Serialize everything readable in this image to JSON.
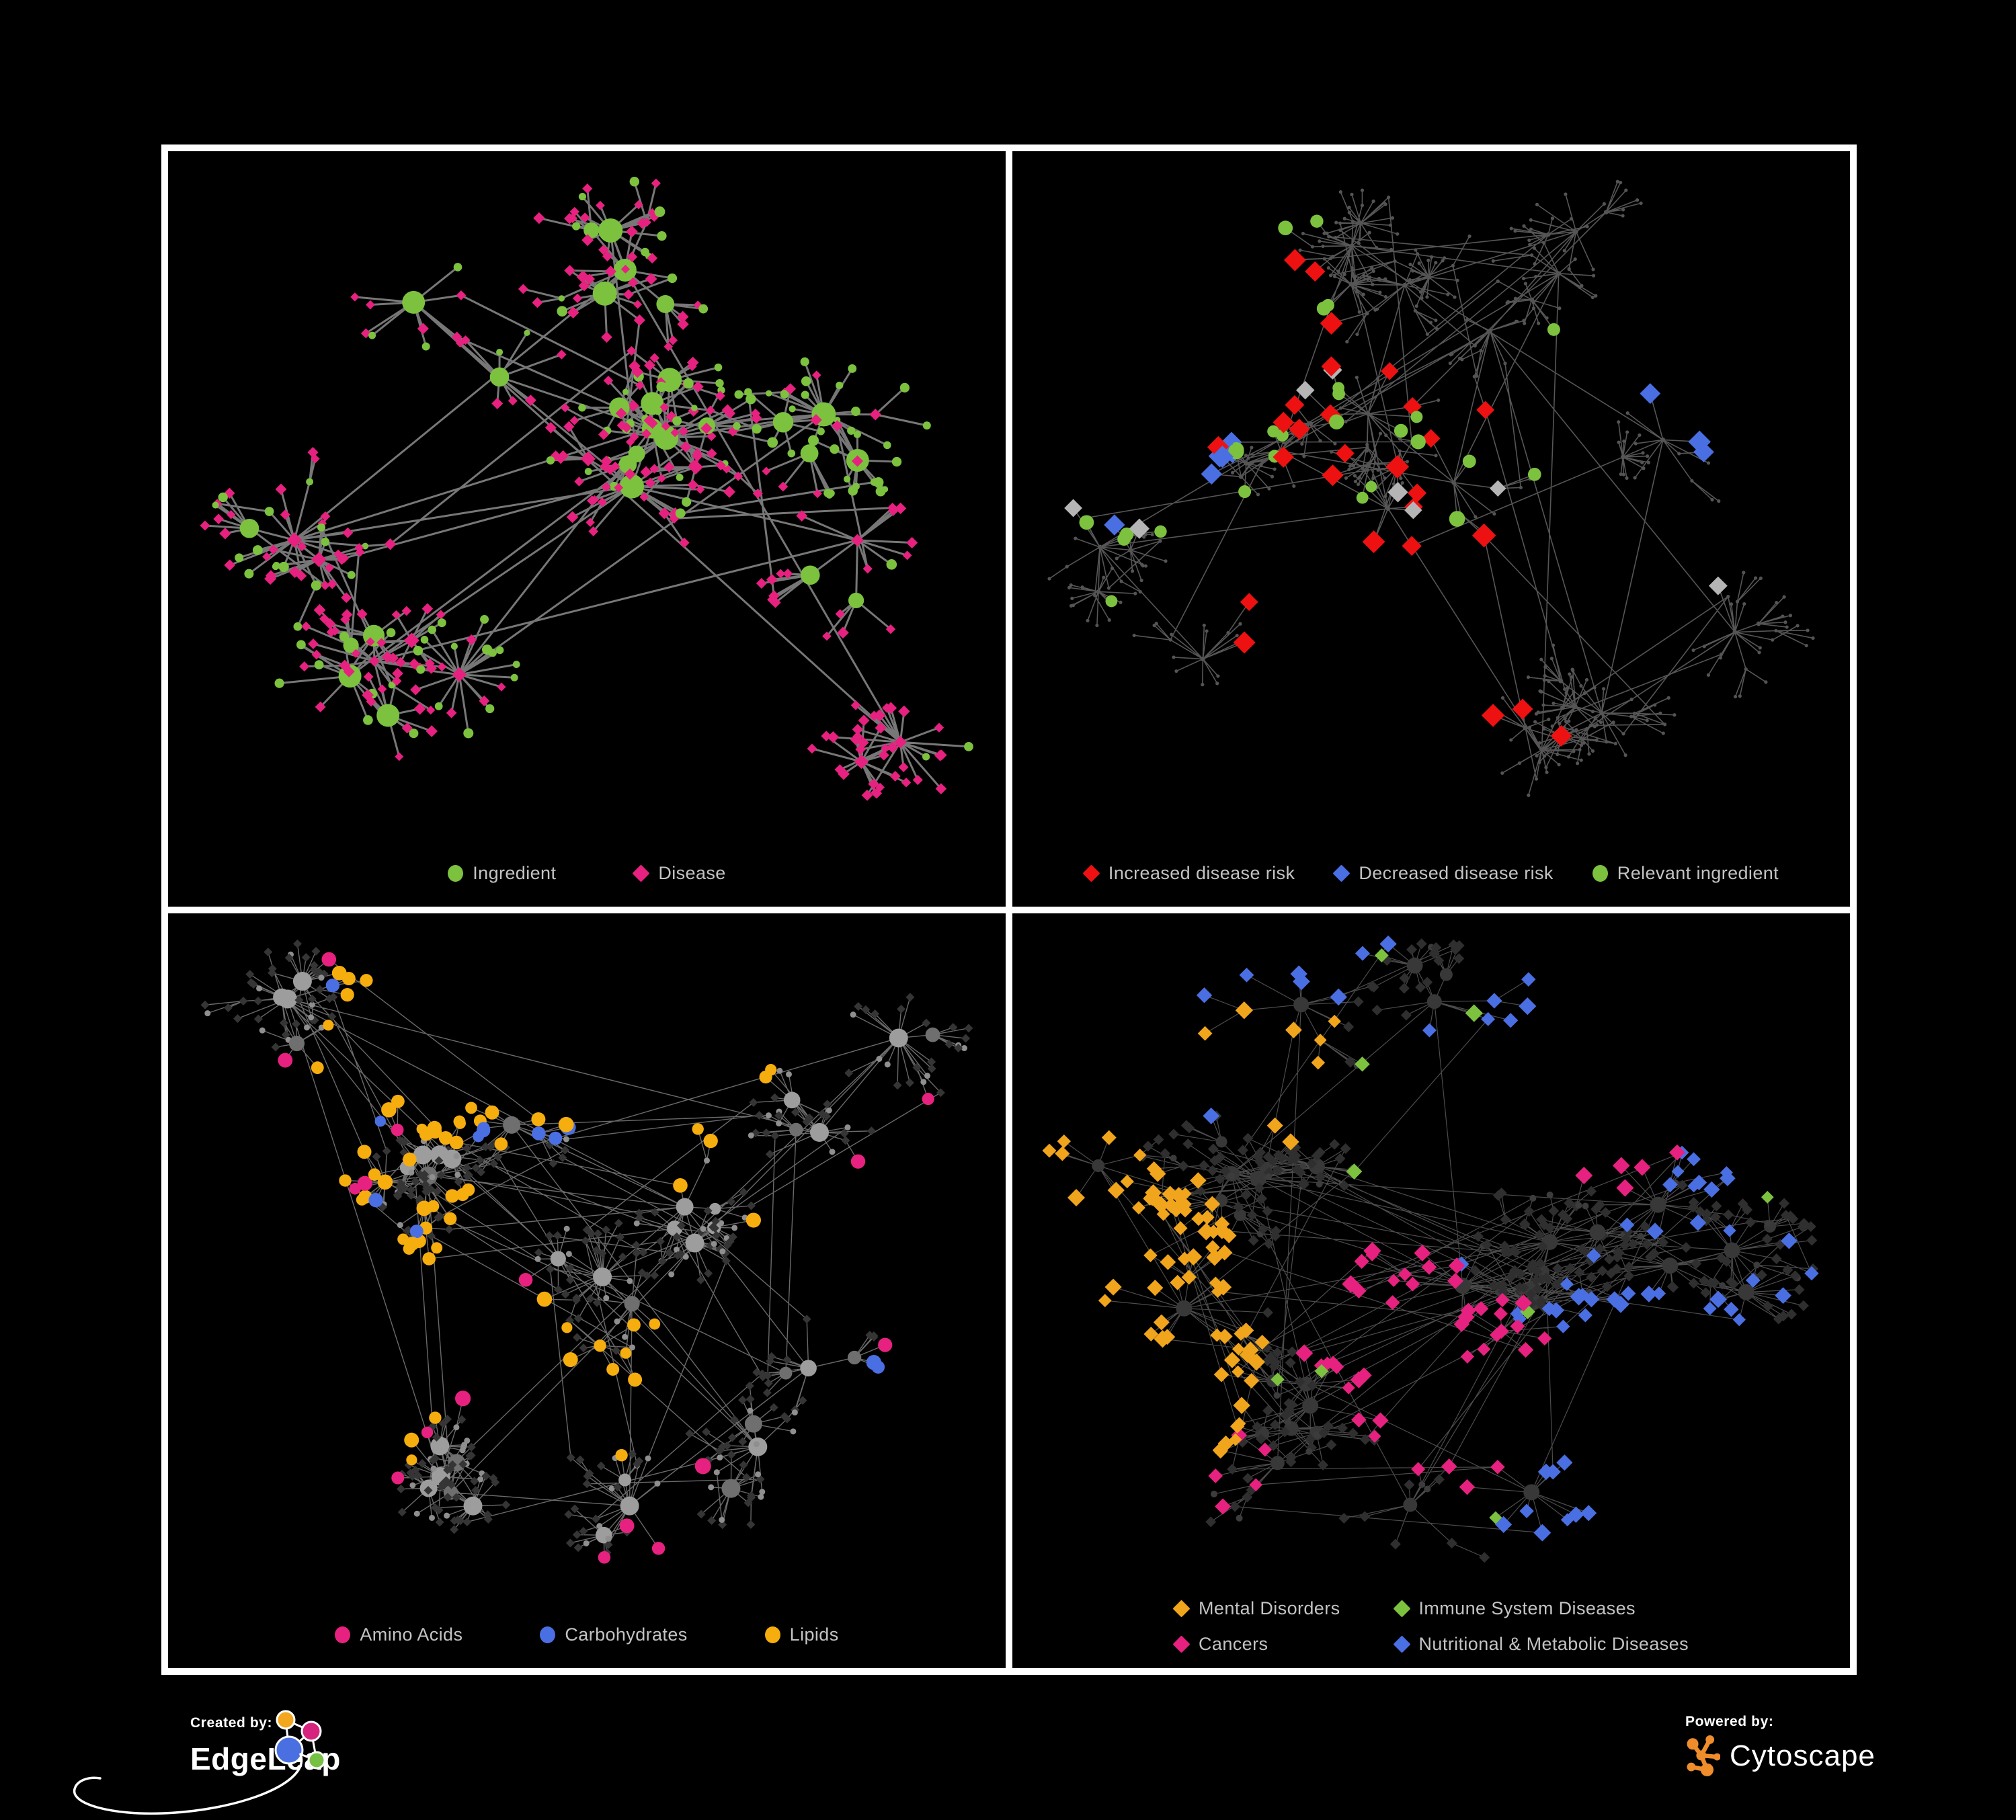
{
  "branding": {
    "created_by_label": "Created by:",
    "created_by_name": "EdgeLeap",
    "powered_by_label": "Powered by:",
    "powered_by_name": "Cytoscape"
  },
  "colors": {
    "background": "#000000",
    "frame": "#ffffff",
    "legend_text": "#c3c3c3",
    "green": "#7cc23f",
    "pink": "#e7217f",
    "red": "#ee1111",
    "blue": "#4a6fe3",
    "orange": "#f0a51c",
    "orange_lipids": "#f6ad0e",
    "gray_highlight": "#b5b5b5"
  },
  "panels": [
    {
      "name": "ingredient-disease",
      "legend": [
        {
          "label": "Ingredient",
          "shape": "circle",
          "color": "#7cc23f"
        },
        {
          "label": "Disease",
          "shape": "diamond",
          "color": "#e7217f"
        }
      ],
      "gen": {
        "seed": 11,
        "hubs": 13,
        "coreHubs": 5,
        "maxNodes": 430,
        "step": 42,
        "branchP": 0.5,
        "fanP": 0.3,
        "maxDepth": 7,
        "cross": 50,
        "crossDist": 420,
        "mode": "mix",
        "edge": [
          "#8c8c8c",
          3,
          0.85
        ],
        "hubKids": 4,
        "green": "#7cc23f",
        "pink": "#e7217f"
      }
    },
    {
      "name": "disease-risk",
      "legend": [
        {
          "label": "Increased disease risk",
          "shape": "diamond",
          "color": "#ee1111"
        },
        {
          "label": "Decreased disease risk",
          "shape": "diamond",
          "color": "#4a6fe3"
        },
        {
          "label": "Relevant ingredient",
          "shape": "circle",
          "color": "#7cc23f"
        }
      ],
      "gen": {
        "seed": 23,
        "hubs": 15,
        "coreHubs": 4,
        "maxNodes": 520,
        "step": 40,
        "branchP": 0.55,
        "fanP": 0.28,
        "maxDepth": 8,
        "cross": 70,
        "crossDist": 480,
        "mode": "dots",
        "edge": [
          "#5f5f5f",
          1.6,
          0.9
        ],
        "hubKids": 5,
        "base": "#545454",
        "highlights": [
          {
            "shape": "diamond",
            "color": "#ee1111",
            "size": 15,
            "count": 26,
            "foci": [
              [
                0.4,
                0.33,
                0.1,
                0.45
              ],
              [
                0.55,
                0.42,
                0.08,
                0.3
              ],
              [
                0.27,
                0.3,
                0.04,
                0.1
              ],
              [
                0.62,
                0.68,
                0.05,
                0.08
              ],
              [
                0.36,
                0.73,
                0.03,
                0.07
              ]
            ]
          },
          {
            "shape": "diamond",
            "color": "#4a6fe3",
            "size": 14,
            "count": 9,
            "foci": [
              [
                0.16,
                0.33,
                0.04,
                0.65
              ],
              [
                0.84,
                0.26,
                0.02,
                0.35
              ]
            ]
          },
          {
            "shape": "diamond",
            "color": "#b5b5b5",
            "size": 13,
            "count": 8,
            "foci": [
              [
                0.18,
                0.3,
                0.06,
                0.4
              ],
              [
                0.46,
                0.46,
                0.12,
                0.6
              ]
            ]
          },
          {
            "shape": "circle",
            "color": "#7cc23f",
            "size": 10,
            "count": 26,
            "foci": [
              [
                0.3,
                0.33,
                0.13,
                0.6
              ],
              [
                0.5,
                0.4,
                0.08,
                0.3
              ],
              [
                0.12,
                0.5,
                0.04,
                0.1
              ]
            ]
          }
        ]
      }
    },
    {
      "name": "nutrient-classes",
      "legend": [
        {
          "label": "Amino Acids",
          "shape": "circle",
          "color": "#e7217f"
        },
        {
          "label": "Carbohydrates",
          "shape": "circle",
          "color": "#4a6fe3"
        },
        {
          "label": "Lipids",
          "shape": "circle",
          "color": "#f6ad0e"
        }
      ],
      "gen": {
        "seed": 37,
        "hubs": 14,
        "coreHubs": 5,
        "maxNodes": 520,
        "step": 40,
        "branchP": 0.5,
        "fanP": 0.3,
        "maxDepth": 7,
        "cross": 120,
        "crossDist": 420,
        "mode": "gray",
        "edge": [
          "#979797",
          1.4,
          0.7
        ],
        "hubKids": 4,
        "highlights": [
          {
            "shape": "circle",
            "color": "#f6ad0e",
            "size": 9.5,
            "count": 62,
            "foci": [
              [
                0.34,
                0.18,
                0.06,
                0.35
              ],
              [
                0.3,
                0.4,
                0.06,
                0.3
              ],
              [
                0.53,
                0.6,
                0.04,
                0.15
              ],
              [
                0.6,
                0.28,
                0.1,
                0.1
              ],
              [
                0.15,
                0.55,
                0.08,
                0.1
              ]
            ]
          },
          {
            "shape": "circle",
            "color": "#4a6fe3",
            "size": 9.5,
            "count": 12,
            "foci": [
              [
                0.42,
                0.12,
                0.04,
                0.6
              ],
              [
                0.36,
                0.42,
                0.08,
                0.25
              ],
              [
                0.86,
                0.6,
                0.04,
                0.15
              ]
            ]
          },
          {
            "shape": "circle",
            "color": "#e7217f",
            "size": 10,
            "count": 15,
            "foci": [
              [
                0.13,
                0.5,
                0.12,
                0.3
              ],
              [
                0.5,
                0.76,
                0.12,
                0.3
              ],
              [
                0.88,
                0.42,
                0.08,
                0.2
              ],
              [
                0.3,
                0.2,
                0.1,
                0.2
              ]
            ]
          }
        ]
      }
    },
    {
      "name": "disease-classes",
      "legend": [
        {
          "label": "Mental Disorders",
          "shape": "diamond",
          "color": "#f0a51c"
        },
        {
          "label": "Immune System Diseases",
          "shape": "diamond",
          "color": "#7cc23f"
        },
        {
          "label": "Cancers",
          "shape": "diamond",
          "color": "#e7217f"
        },
        {
          "label": "Nutritional & Metabolic Diseases",
          "shape": "diamond",
          "color": "#4a6fe3"
        }
      ],
      "gen": {
        "seed": 49,
        "hubs": 15,
        "coreHubs": 5,
        "maxNodes": 540,
        "step": 40,
        "branchP": 0.5,
        "fanP": 0.3,
        "maxDepth": 7,
        "cross": 120,
        "crossDist": 420,
        "mode": "dark",
        "edge": [
          "#8a8a8a",
          1.2,
          0.55
        ],
        "hubKids": 5,
        "highlights": [
          {
            "shape": "diamond",
            "color": "#f0a51c",
            "size": 11,
            "count": 80,
            "foci": [
              [
                0.13,
                0.44,
                0.06,
                0.55
              ],
              [
                0.2,
                0.52,
                0.05,
                0.25
              ],
              [
                0.08,
                0.57,
                0.03,
                0.1
              ],
              [
                0.33,
                0.18,
                0.04,
                0.1
              ]
            ]
          },
          {
            "shape": "diamond",
            "color": "#e7217f",
            "size": 11,
            "count": 52,
            "foci": [
              [
                0.46,
                0.5,
                0.06,
                0.5
              ],
              [
                0.52,
                0.62,
                0.05,
                0.3
              ],
              [
                0.3,
                0.76,
                0.03,
                0.1
              ],
              [
                0.72,
                0.3,
                0.03,
                0.1
              ]
            ]
          },
          {
            "shape": "diamond",
            "color": "#4a6fe3",
            "size": 11,
            "count": 62,
            "foci": [
              [
                0.66,
                0.55,
                0.05,
                0.3
              ],
              [
                0.76,
                0.73,
                0.05,
                0.2
              ],
              [
                0.8,
                0.28,
                0.07,
                0.2
              ],
              [
                0.55,
                0.1,
                0.09,
                0.1
              ],
              [
                0.3,
                0.07,
                0.06,
                0.1
              ],
              [
                0.93,
                0.45,
                0.04,
                0.1
              ]
            ]
          },
          {
            "shape": "diamond",
            "color": "#7cc23f",
            "size": 11,
            "count": 9,
            "foci": [
              [
                0.5,
                0.45,
                0.18,
                1.0
              ]
            ]
          }
        ]
      }
    }
  ],
  "chart_data": [
    {
      "type": "network",
      "panel": "top-left",
      "description": "Ingredient-disease association network; green circles are ingredients (hub-sized by degree), pink diamonds are diseases",
      "legend": [
        "Ingredient",
        "Disease"
      ],
      "approx_nodes": 430,
      "legend_position": "bottom-center"
    },
    {
      "type": "network",
      "panel": "top-right",
      "description": "Same network de-emphasized in gray; highlighted diamonds mark increased (red) or decreased (blue) disease risk, gray diamonds neutral, green circles are relevant ingredients clustered near center",
      "legend": [
        "Increased disease risk",
        "Decreased disease risk",
        "Relevant ingredient"
      ],
      "approx_nodes": 520,
      "legend_position": "bottom-center"
    },
    {
      "type": "network",
      "panel": "bottom-left",
      "description": "Gray base network with ingredient circles colored by nutrient class: pink amino acids, blue carbohydrates, orange lipids (dense orange clusters upper-middle)",
      "legend": [
        "Amino Acids",
        "Carbohydrates",
        "Lipids"
      ],
      "approx_nodes": 520,
      "legend_position": "bottom-center"
    },
    {
      "type": "network",
      "panel": "bottom-right",
      "description": "Dark diamond disease network colored by disease class: orange mental-disorder cluster on left, pink cancers in center, blue nutritional & metabolic diseases right/top, sparse green immune system diseases",
      "legend": [
        "Mental Disorders",
        "Immune System Diseases",
        "Cancers",
        "Nutritional & Metabolic Diseases"
      ],
      "approx_nodes": 540,
      "legend_position": "bottom-center"
    }
  ]
}
